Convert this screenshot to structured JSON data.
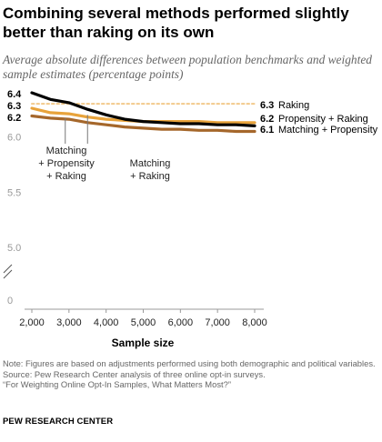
{
  "title": "Combining several methods performed slightly better than raking on its own",
  "subtitle": "Average absolute differences between population benchmarks and weighted sample estimates (percentage points)",
  "chart_data": {
    "type": "line",
    "xlabel": "Sample size",
    "ylabel": "",
    "x_ticks": [
      "2,000",
      "3,000",
      "4,000",
      "5,000",
      "6,000",
      "7,000",
      "8,000"
    ],
    "y_ticks": [
      "6.0",
      "5.5",
      "5.0",
      "0"
    ],
    "xlim": [
      2000,
      8000
    ],
    "ylim": [
      0,
      6.4
    ],
    "y_axis_break": "between 0 and 5.0",
    "grid": false,
    "legend": "direct labels at line ends",
    "x": [
      2000,
      2500,
      3000,
      3500,
      4000,
      4500,
      5000,
      5500,
      6000,
      6500,
      7000,
      7500,
      8000
    ],
    "series": [
      {
        "name": "Raking",
        "color": "#f2c98b",
        "dashed": true,
        "end_label": "6.3",
        "start_label": "6.3",
        "values": [
          6.3,
          6.3,
          6.3,
          6.3,
          6.3,
          6.3,
          6.3,
          6.3,
          6.3,
          6.3,
          6.3,
          6.3,
          6.3
        ]
      },
      {
        "name": "Propensity + Raking",
        "color": "#e8a33b",
        "dashed": false,
        "end_label": "6.2",
        "start_label": "",
        "values": [
          6.26,
          6.22,
          6.21,
          6.18,
          6.16,
          6.15,
          6.14,
          6.14,
          6.14,
          6.14,
          6.13,
          6.13,
          6.13
        ]
      },
      {
        "name": "Matching + Propensity",
        "color": "#a5672b",
        "dashed": false,
        "end_label": "6.1",
        "start_label": "",
        "values": [
          6.19,
          6.17,
          6.16,
          6.13,
          6.11,
          6.09,
          6.08,
          6.07,
          6.07,
          6.06,
          6.06,
          6.05,
          6.05
        ]
      },
      {
        "name": "Matching + Raking",
        "color": "#000000",
        "dashed": false,
        "end_label": "",
        "start_label": "6.4",
        "values": [
          6.4,
          6.34,
          6.31,
          6.25,
          6.2,
          6.16,
          6.14,
          6.13,
          6.12,
          6.12,
          6.11,
          6.11,
          6.1
        ]
      }
    ],
    "start_labels": [
      "6.4",
      "6.3",
      "6.2"
    ],
    "annotations": [
      {
        "text": [
          "Matching",
          "+ Propensity",
          "+ Raking"
        ],
        "points_to_x": 2900
      },
      {
        "text": [
          "Matching",
          "+ Raking"
        ],
        "points_to_x": 3500
      }
    ]
  },
  "notes": {
    "note": "Note: Figures are based on adjustments performed using both demographic and political variables.",
    "source": "Source: Pew Research Center analysis of three online opt-in surveys.",
    "report": "“For Weighting Online Opt-In Samples, What Matters Most?”"
  },
  "org": "PEW RESEARCH CENTER"
}
